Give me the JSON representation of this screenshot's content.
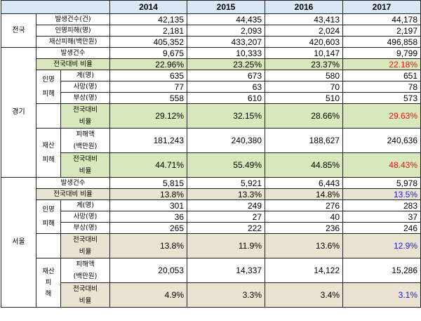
{
  "headers": [
    "2014",
    "2015",
    "2016",
    "2017"
  ],
  "national": {
    "region_label": "전국",
    "rows": [
      {
        "label": "발생건수(건)",
        "values": [
          "42,135",
          "44,435",
          "43,413",
          "44,178"
        ]
      },
      {
        "label": "인명피해(명)",
        "values": [
          "2,181",
          "2,093",
          "2,024",
          "2,197"
        ]
      },
      {
        "label": "재산피해(백만원)",
        "values": [
          "405,352",
          "433,207",
          "420,603",
          "496,858"
        ]
      }
    ]
  },
  "gyeonggi": {
    "region_label": "경기",
    "occurrence": {
      "label": "발생건수",
      "values": [
        "9,675",
        "10,333",
        "10,147",
        "9,799"
      ]
    },
    "ratio": {
      "label": "전국대비 비율",
      "values": [
        "22.96%",
        "23.25%",
        "23.37%",
        "22.18%"
      ]
    },
    "casualty_label_1": "인명",
    "casualty_label_2": "피해",
    "casualty_rows": [
      {
        "label": "계(명)",
        "values": [
          "635",
          "673",
          "580",
          "651"
        ]
      },
      {
        "label": "사망(명)",
        "values": [
          "77",
          "63",
          "70",
          "78"
        ]
      },
      {
        "label": "부상(명)",
        "values": [
          "558",
          "610",
          "510",
          "573"
        ]
      }
    ],
    "casualty_ratio": {
      "label_1": "전국대비",
      "label_2": "비율",
      "values": [
        "29.12%",
        "32.15%",
        "28.66%",
        "29.63%"
      ]
    },
    "property_label_1": "재산",
    "property_label_2": "피해",
    "property_amount": {
      "label_1": "피해액",
      "label_2": "(백만원)",
      "values": [
        "181,243",
        "240,380",
        "188,627",
        "240,636"
      ]
    },
    "property_ratio": {
      "label_1": "전국대비",
      "label_2": "비율",
      "values": [
        "44.71%",
        "55.49%",
        "44.85%",
        "48.43%"
      ]
    }
  },
  "seoul": {
    "region_label": "서울",
    "occurrence": {
      "label": "발생건수",
      "values": [
        "5,815",
        "5,921",
        "6,443",
        "5,978"
      ]
    },
    "ratio": {
      "label": "전국대비 비율",
      "values": [
        "13.8%",
        "13.3%",
        "14.8%",
        "13.5%"
      ]
    },
    "casualty_label_1": "인명",
    "casualty_label_2": "피해",
    "casualty_rows": [
      {
        "label": "계(명)",
        "values": [
          "301",
          "249",
          "276",
          "283"
        ]
      },
      {
        "label": "사망(명)",
        "values": [
          "36",
          "27",
          "40",
          "37"
        ]
      },
      {
        "label": "부상(명)",
        "values": [
          "265",
          "222",
          "236",
          "246"
        ]
      }
    ],
    "casualty_ratio": {
      "label_1": "전국대비",
      "label_2": "비율",
      "values": [
        "13.8%",
        "11.9%",
        "13.6%",
        "12.9%"
      ]
    },
    "property_label_1": "재산",
    "property_label_2": "피",
    "property_label_3": "해",
    "property_amount": {
      "label_1": "피해액",
      "label_2": "(백만원)",
      "values": [
        "20,053",
        "14,337",
        "14,122",
        "15,286"
      ]
    },
    "property_ratio": {
      "label_1": "전국대비",
      "label_2": "비율",
      "values": [
        "4.9%",
        "3.3%",
        "3.4%",
        "3.1%"
      ]
    }
  },
  "highlight_colors": {
    "gyeonggi_2017": "#ee1111",
    "seoul_2017": "#1a1ae6",
    "green_band": "#d6e8bc",
    "beige_band": "#eae3d2",
    "header_band": "#dae8f5"
  }
}
